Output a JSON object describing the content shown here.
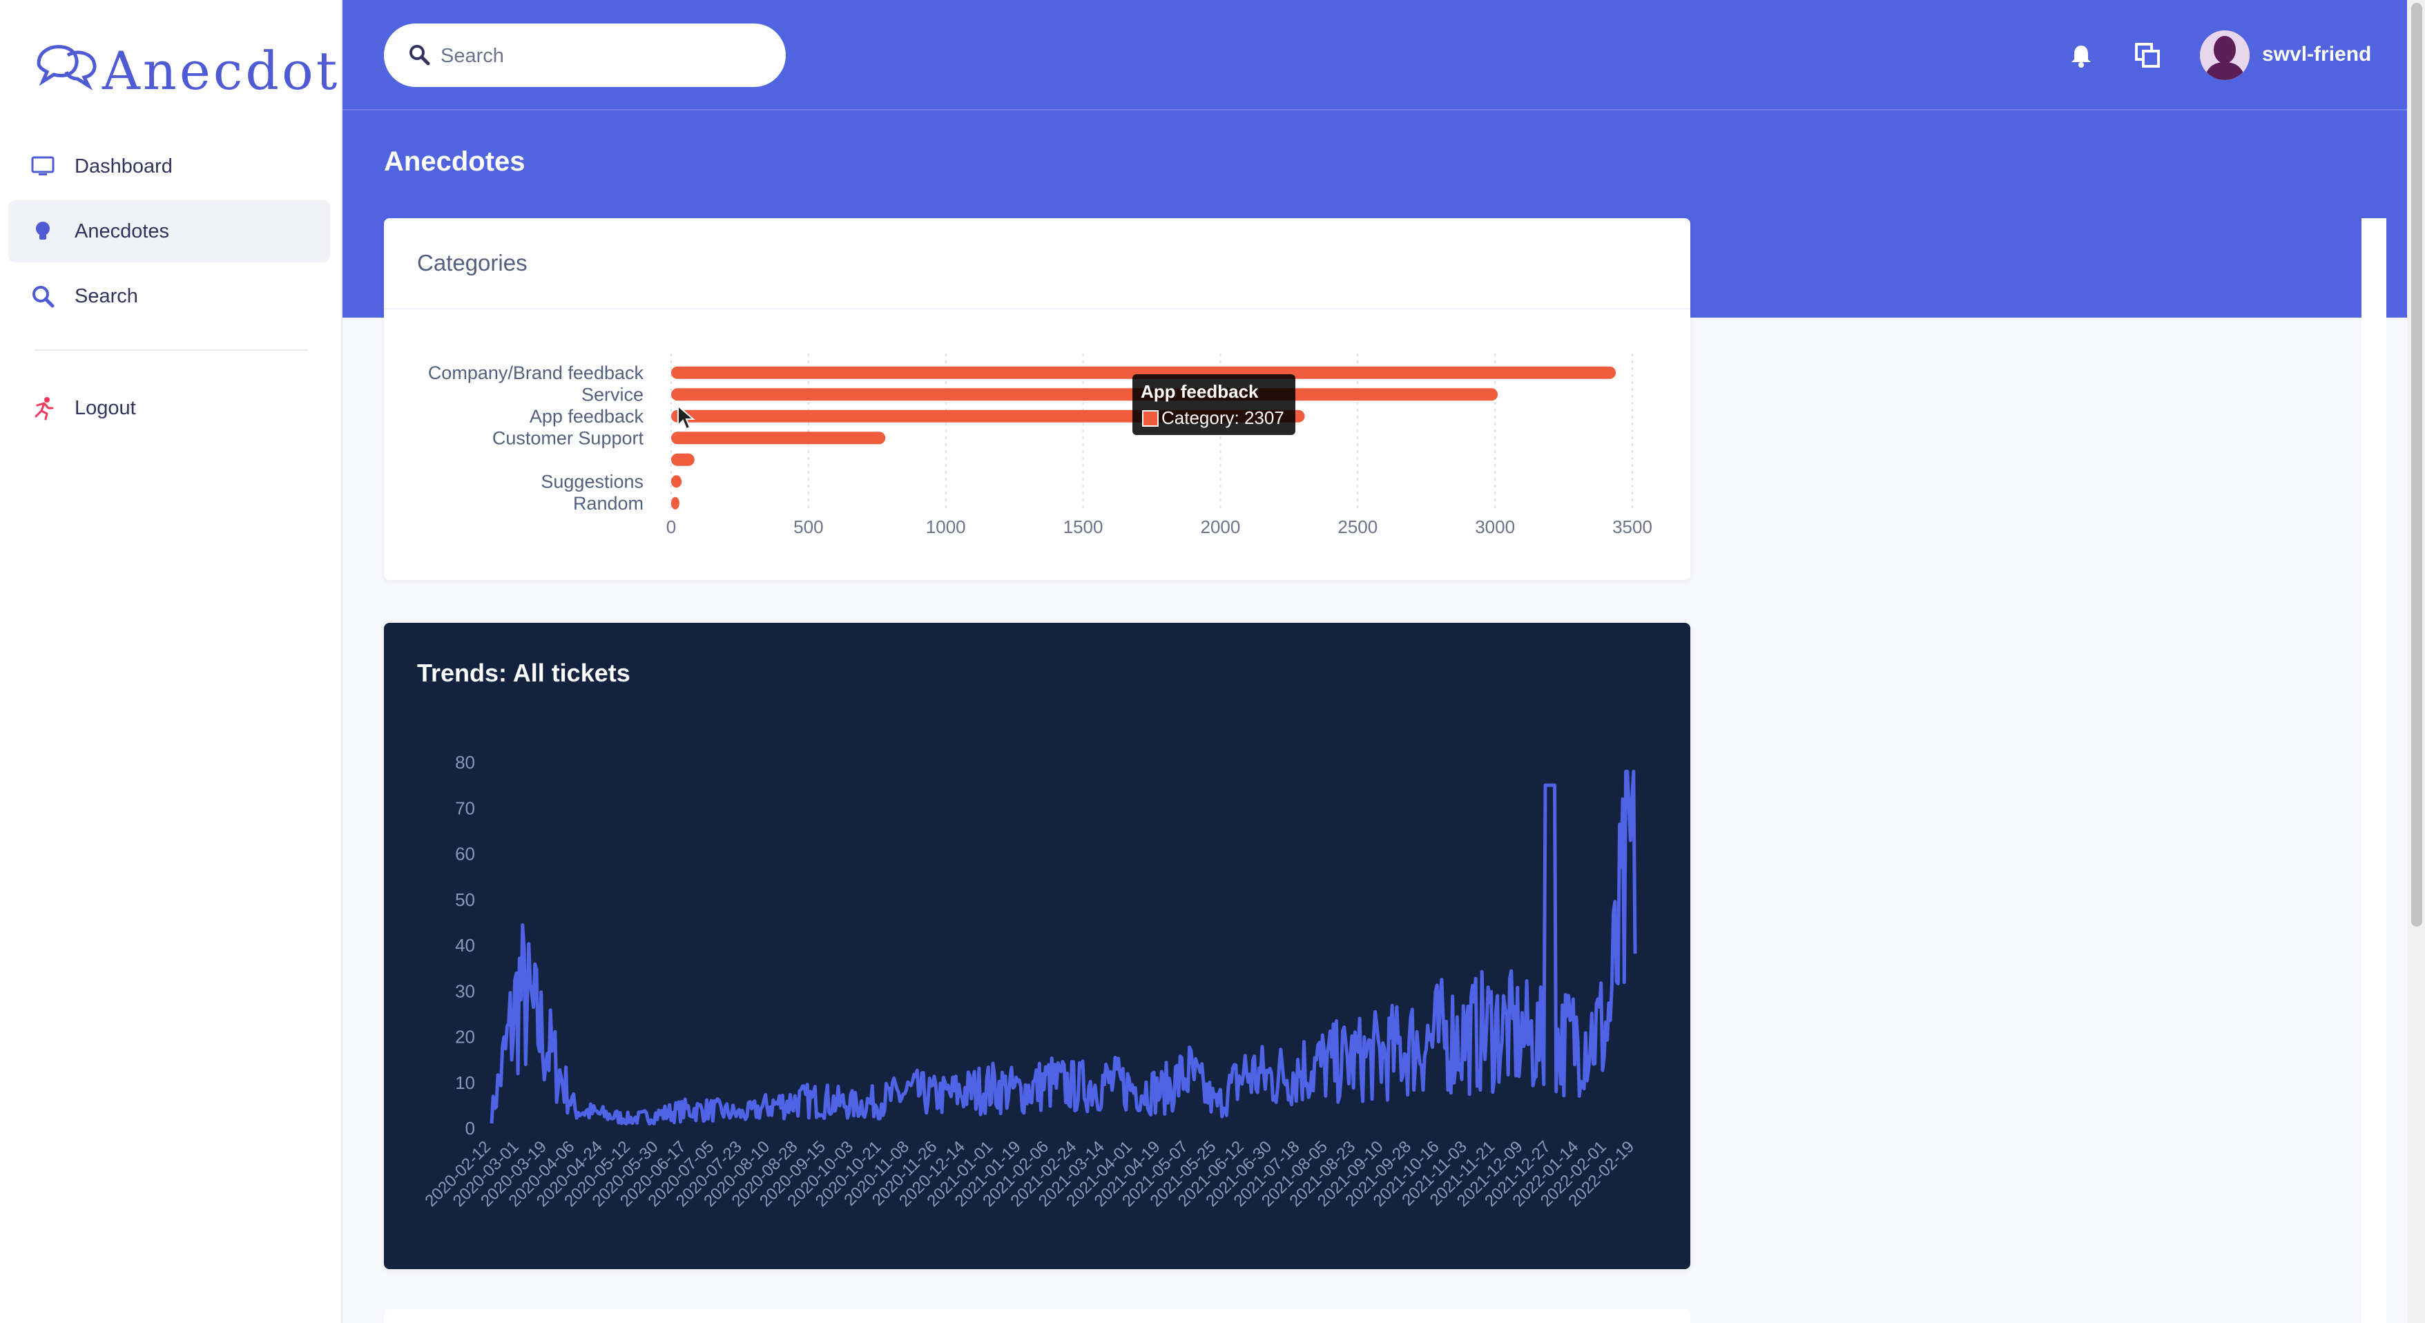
{
  "app": {
    "brand_name": "Anecdote"
  },
  "sidebar": {
    "items": [
      {
        "label": "Dashboard",
        "icon": "monitor-icon"
      },
      {
        "label": "Anecdotes",
        "icon": "lightbulb-icon",
        "active": true
      },
      {
        "label": "Search",
        "icon": "search-icon"
      },
      {
        "label": "Logout",
        "icon": "running-person-icon"
      }
    ]
  },
  "header": {
    "search_placeholder": "Search",
    "page_title": "Anecdotes",
    "username": "swvl-friend",
    "icons": [
      "bell-icon",
      "multiple-windows-icon"
    ]
  },
  "colors": {
    "accent": "#5064e0",
    "bar": "#f15b3e",
    "dark_card": "#13223f",
    "trend_line": "#4f63e6"
  },
  "categories_card": {
    "title": "Categories",
    "tooltip": {
      "title": "App feedback",
      "body": "Category: 2307"
    }
  },
  "trends_card": {
    "title": "Trends: All tickets"
  },
  "chart_data": [
    {
      "type": "bar",
      "orientation": "horizontal",
      "title": "Categories",
      "categories": [
        "Company/Brand feedback",
        "Service",
        "App feedback",
        "Customer Support",
        "",
        "Suggestions",
        "Random"
      ],
      "values": [
        3440,
        3010,
        2307,
        780,
        85,
        38,
        30
      ],
      "series_name": "Category",
      "xlim": [
        0,
        3500
      ],
      "xticks": [
        0,
        500,
        1000,
        1500,
        2000,
        2500,
        3000,
        3500
      ],
      "grid": "vertical-dashed"
    },
    {
      "type": "line",
      "title": "Trends: All tickets",
      "ylim": [
        0,
        80
      ],
      "yticks": [
        0,
        10,
        20,
        30,
        40,
        50,
        60,
        70,
        80
      ],
      "xtick_labels": [
        "2020-02-12",
        "2020-03-01",
        "2020-03-19",
        "2020-04-06",
        "2020-04-24",
        "2020-05-12",
        "2020-05-30",
        "2020-06-17",
        "2020-07-05",
        "2020-07-23",
        "2020-08-10",
        "2020-08-28",
        "2020-09-15",
        "2020-10-03",
        "2020-10-21",
        "2020-11-08",
        "2020-11-26",
        "2020-12-14",
        "2021-01-01",
        "2021-01-19",
        "2021-02-06",
        "2021-02-24",
        "2021-03-14",
        "2021-04-01",
        "2021-04-19",
        "2021-05-07",
        "2021-05-25",
        "2021-06-12",
        "2021-06-30",
        "2021-07-18",
        "2021-08-05",
        "2021-08-23",
        "2021-09-10",
        "2021-09-28",
        "2021-10-16",
        "2021-11-03",
        "2021-11-21",
        "2021-12-09",
        "2021-12-27",
        "2022-01-14",
        "2022-02-01",
        "2022-02-19"
      ],
      "values_per_tick": [
        3,
        30,
        18,
        4,
        3,
        2,
        3,
        4,
        4,
        3,
        5,
        6,
        6,
        5,
        6,
        8,
        7,
        8,
        9,
        8,
        10,
        9,
        10,
        9,
        8,
        12,
        5,
        12,
        11,
        13,
        14,
        15,
        16,
        18,
        20,
        20,
        22,
        20,
        18,
        20,
        22,
        65
      ]
    }
  ]
}
